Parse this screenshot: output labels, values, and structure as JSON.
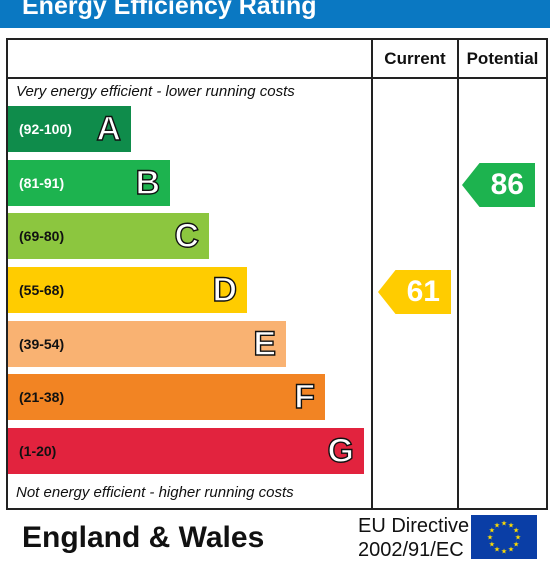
{
  "title": "Energy Efficiency Rating",
  "columns": {
    "current": "Current",
    "potential": "Potential"
  },
  "top_note": "Very energy efficient - lower running costs",
  "bottom_note": "Not energy efficient - higher running costs",
  "bands": [
    {
      "range": "(92-100)",
      "letter": "A",
      "color": "#0f8c4b",
      "range_color": "#ffffff"
    },
    {
      "range": "(81-91)",
      "letter": "B",
      "color": "#1db34f",
      "range_color": "#ffffff"
    },
    {
      "range": "(69-80)",
      "letter": "C",
      "color": "#8cc63f",
      "range_color": "#111111"
    },
    {
      "range": "(55-68)",
      "letter": "D",
      "color": "#ffcc00",
      "range_color": "#111111"
    },
    {
      "range": "(39-54)",
      "letter": "E",
      "color": "#f9b272",
      "range_color": "#111111"
    },
    {
      "range": "(21-38)",
      "letter": "F",
      "color": "#f28423",
      "range_color": "#111111"
    },
    {
      "range": "(1-20)",
      "letter": "G",
      "color": "#e2233e",
      "range_color": "#111111"
    }
  ],
  "current_rating": {
    "value": "61",
    "band": "D",
    "color": "#ffcc00"
  },
  "potential_rating": {
    "value": "86",
    "band": "B",
    "color": "#1db34f"
  },
  "footer": {
    "country": "England & Wales",
    "directive_line1": "EU Directive",
    "directive_line2": "2002/91/EC"
  },
  "colors": {
    "header": "#0a78c2",
    "eu_flag": "#0a3ea6",
    "eu_stars": "#ffdd00"
  }
}
